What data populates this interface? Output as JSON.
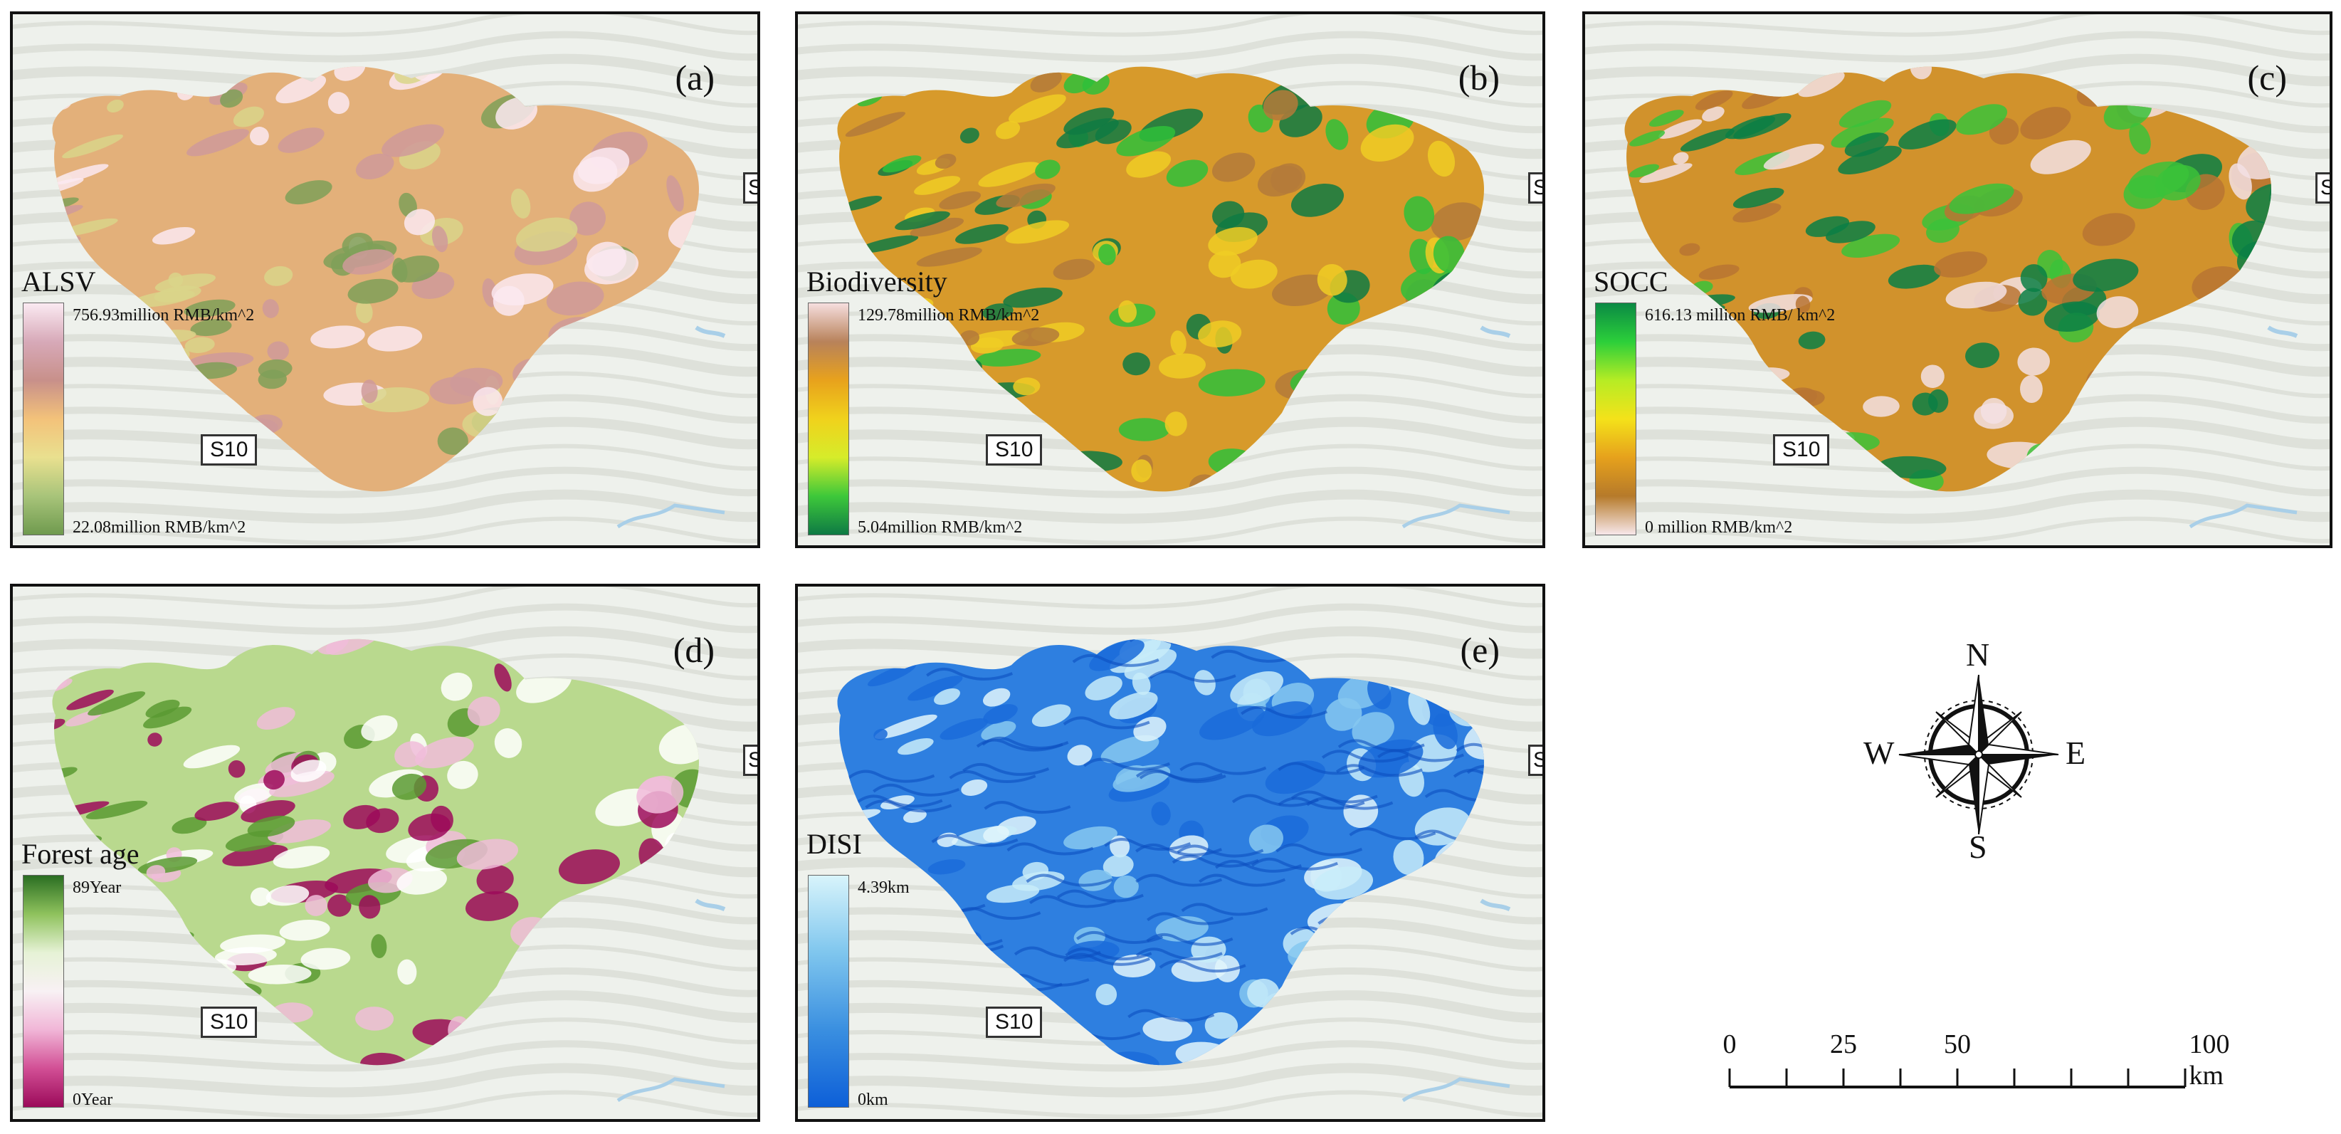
{
  "panels": [
    {
      "id": "a",
      "label": "(a)",
      "legend_title": "ALSV",
      "legend_max": "756.93million RMB/km^2",
      "legend_min": "22.08million RMB/km^2",
      "road_label": "S10",
      "edge_label": "S",
      "ramp": [
        "#fbeaf2",
        "#d7a9b8",
        "#c8908a",
        "#f3c27a",
        "#e9e08f",
        "#a8c47a",
        "#6f9a4e"
      ],
      "fill_main": "#e3b07a",
      "patches": [
        "#7fa058",
        "#d9d58a",
        "#cf9a9a",
        "#fbe9f1"
      ]
    },
    {
      "id": "b",
      "label": "(b)",
      "legend_title": "Biodiversity",
      "legend_max": "129.78million RMB/km^2",
      "legend_min": "5.04million RMB/km^2",
      "road_label": "S10",
      "edge_label": "S",
      "ramp": [
        "#f6dede",
        "#b8825a",
        "#e8a21c",
        "#f0d21c",
        "#d6ec2a",
        "#3ec83a",
        "#0e7a44"
      ],
      "fill_main": "#d79a2b",
      "patches": [
        "#2fbf3a",
        "#0f7a43",
        "#f0cc25",
        "#b47a3a"
      ]
    },
    {
      "id": "c",
      "label": "(c)",
      "legend_title": "SOCC",
      "legend_max": "616.13 million RMB/ km^2",
      "legend_min": "0 million RMB/km^2",
      "road_label": "S10",
      "edge_label": "S",
      "ramp": [
        "#0a8a44",
        "#2ccf3a",
        "#b6ec24",
        "#f4e21a",
        "#e6a11c",
        "#b67a2a",
        "#f7e7ea"
      ],
      "fill_main": "#d1922c",
      "patches": [
        "#f3e1e4",
        "#3bc23a",
        "#0b7f45",
        "#b97432"
      ]
    },
    {
      "id": "d",
      "label": "(d)",
      "legend_title": "Forest age",
      "legend_max": "89Year",
      "legend_min": "0Year",
      "road_label": "S10",
      "edge_label": "S",
      "ramp": [
        "#2a6e22",
        "#8fc25d",
        "#e6f2d6",
        "#f8f1f4",
        "#f1b6d7",
        "#d24f95",
        "#9c0a5a"
      ],
      "fill_main": "#b9d98e",
      "patches": [
        "#9c0a5a",
        "#f0bcd9",
        "#5b9a33",
        "#ffffff"
      ]
    },
    {
      "id": "e",
      "label": "(e)",
      "legend_title": "DISI",
      "legend_max": "4.39km",
      "legend_min": "0km",
      "road_label": "S10",
      "edge_label": "S",
      "ramp": [
        "#d8f4fb",
        "#7fc6ee",
        "#3a8fe0",
        "#0d5fd8"
      ],
      "fill_main": "#2e7fe0",
      "patches": [
        "#c8ecf9",
        "#86c8f0",
        "#1a6bd9",
        "#e2f6fc"
      ]
    }
  ],
  "compass": {
    "north": "N",
    "south": "S",
    "east": "E",
    "west": "W"
  },
  "scale_bar": {
    "ticks": [
      "0",
      "25",
      "50",
      "100 km"
    ],
    "tick_values": [
      0,
      25,
      50,
      100
    ]
  },
  "colors": {
    "frame": "#111111",
    "basemap": "#eef1ec",
    "terrain": "#c9cfc6",
    "water": "#a9cfe8"
  }
}
